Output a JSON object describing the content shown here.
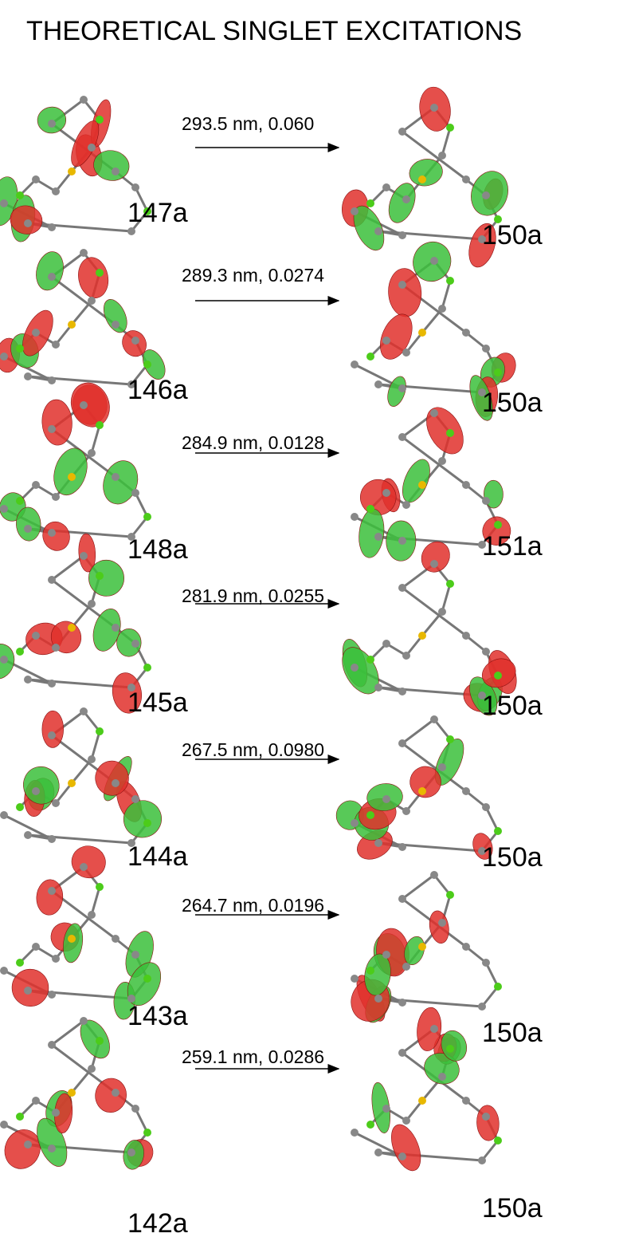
{
  "title": "THEORETICAL SINGLET EXCITATIONS",
  "transitions": [
    {
      "label": "293.5 nm, 0.060",
      "from": "147a",
      "to": "150a"
    },
    {
      "label": "289.3 nm, 0.0274",
      "from": "146a",
      "to": "150a"
    },
    {
      "label": "284.9 nm, 0.0128",
      "from": "148a",
      "to": "151a"
    },
    {
      "label": "281.9 nm, 0.0255",
      "from": "145a",
      "to": "150a"
    },
    {
      "label": "267.5 nm, 0.0980",
      "from": "144a",
      "to": "150a"
    },
    {
      "label": "264.7 nm, 0.0196",
      "from": "143a",
      "to": "150a"
    },
    {
      "label": "259.1 nm, 0.0286",
      "from": "142a",
      "to": "150a"
    }
  ]
}
